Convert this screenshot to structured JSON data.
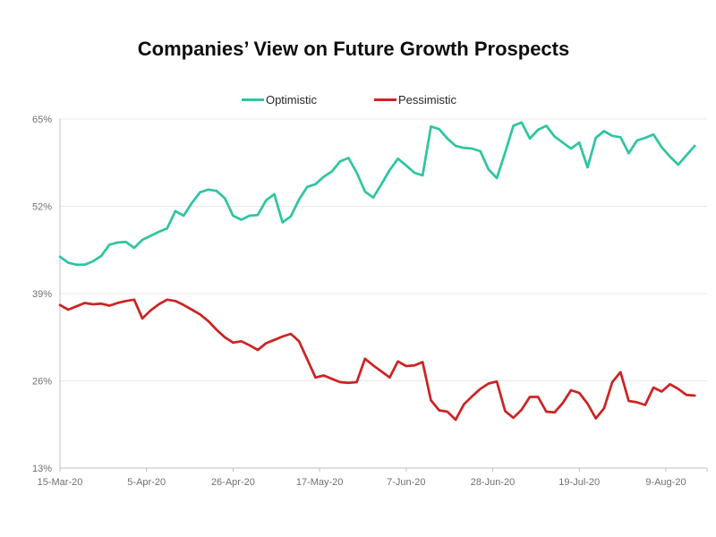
{
  "title": {
    "text": "Companies’ View on Future Growth Prospects",
    "color": "#0D0D0D"
  },
  "chart_data": {
    "type": "line",
    "title": "Companies’ View on Future Growth Prospects",
    "legend_position": "top-center",
    "grid": "horizontal",
    "background": "#FFFFFF",
    "axis_color": "#BFBFBF",
    "grid_color": "#E9E9E9",
    "tick_label_color": "#707070",
    "legend_text_color": "#262626",
    "ylim": [
      13,
      65
    ],
    "y_ticks": [
      13,
      26,
      39,
      52,
      65
    ],
    "y_tick_labels": [
      "13%",
      "26%",
      "39%",
      "52%",
      "65%"
    ],
    "x_tick_labels": [
      "15-Mar-20",
      "5-Apr-20",
      "26-Apr-20",
      "17-May-20",
      "7-Jun-20",
      "28-Jun-20",
      "19-Jul-20",
      "9-Aug-20"
    ],
    "x_tick_days": [
      0,
      21,
      42,
      63,
      84,
      105,
      126,
      147
    ],
    "xlim_days": [
      0,
      157
    ],
    "x_dates": [
      "2020-03-15",
      "2020-03-17",
      "2020-03-19",
      "2020-03-21",
      "2020-03-23",
      "2020-03-25",
      "2020-03-27",
      "2020-03-29",
      "2020-03-31",
      "2020-04-02",
      "2020-04-04",
      "2020-04-06",
      "2020-04-08",
      "2020-04-10",
      "2020-04-12",
      "2020-04-14",
      "2020-04-16",
      "2020-04-18",
      "2020-04-20",
      "2020-04-22",
      "2020-04-24",
      "2020-04-26",
      "2020-04-28",
      "2020-04-30",
      "2020-05-02",
      "2020-05-04",
      "2020-05-06",
      "2020-05-08",
      "2020-05-10",
      "2020-05-12",
      "2020-05-14",
      "2020-05-16",
      "2020-05-18",
      "2020-05-20",
      "2020-05-22",
      "2020-05-24",
      "2020-05-26",
      "2020-05-28",
      "2020-05-30",
      "2020-06-01",
      "2020-06-03",
      "2020-06-05",
      "2020-06-07",
      "2020-06-09",
      "2020-06-11",
      "2020-06-13",
      "2020-06-15",
      "2020-06-17",
      "2020-06-19",
      "2020-06-21",
      "2020-06-23",
      "2020-06-25",
      "2020-06-27",
      "2020-06-29",
      "2020-07-01",
      "2020-07-03",
      "2020-07-05",
      "2020-07-07",
      "2020-07-09",
      "2020-07-11",
      "2020-07-13",
      "2020-07-15",
      "2020-07-17",
      "2020-07-19",
      "2020-07-21",
      "2020-07-23",
      "2020-07-25",
      "2020-07-27",
      "2020-07-29",
      "2020-07-31",
      "2020-08-02",
      "2020-08-04",
      "2020-08-06",
      "2020-08-08",
      "2020-08-10",
      "2020-08-12",
      "2020-08-14",
      "2020-08-16"
    ],
    "series": [
      {
        "name": "Optimistic",
        "color": "#2FC5A2",
        "values": [
          44.5,
          43.6,
          43.3,
          43.3,
          43.8,
          44.6,
          46.3,
          46.6,
          46.7,
          45.8,
          47.0,
          47.6,
          48.2,
          48.7,
          51.3,
          50.6,
          52.5,
          54.1,
          54.5,
          54.3,
          53.2,
          50.6,
          50.0,
          50.6,
          50.7,
          52.9,
          53.8,
          49.6,
          50.5,
          53.0,
          54.9,
          55.3,
          56.4,
          57.2,
          58.7,
          59.2,
          57.0,
          54.2,
          53.3,
          55.3,
          57.4,
          59.1,
          58.1,
          57.0,
          56.6,
          63.9,
          63.5,
          62.1,
          61.0,
          60.7,
          60.6,
          60.2,
          57.5,
          56.2,
          60.0,
          64.0,
          64.5,
          62.1,
          63.4,
          64.0,
          62.4,
          61.5,
          60.6,
          61.5,
          57.8,
          62.2,
          63.2,
          62.5,
          62.3,
          59.9,
          61.8,
          62.2,
          62.7,
          60.8,
          59.4,
          58.2,
          59.6,
          61.0
        ]
      },
      {
        "name": "Pessimistic",
        "color": "#CC2424",
        "values": [
          37.3,
          36.6,
          37.1,
          37.6,
          37.4,
          37.5,
          37.2,
          37.6,
          37.9,
          38.1,
          35.3,
          36.5,
          37.4,
          38.1,
          37.9,
          37.3,
          36.6,
          35.9,
          34.9,
          33.6,
          32.5,
          31.7,
          31.9,
          31.3,
          30.6,
          31.6,
          32.1,
          32.6,
          33.0,
          31.9,
          29.2,
          26.5,
          26.8,
          26.3,
          25.8,
          25.7,
          25.8,
          29.3,
          28.3,
          27.4,
          26.5,
          28.9,
          28.2,
          28.3,
          28.8,
          23.1,
          21.6,
          21.4,
          20.2,
          22.5,
          23.7,
          24.8,
          25.6,
          25.9,
          21.5,
          20.5,
          21.7,
          23.6,
          23.6,
          21.4,
          21.3,
          22.7,
          24.6,
          24.2,
          22.6,
          20.4,
          21.9,
          25.8,
          27.3,
          23.0,
          22.8,
          22.4,
          25.0,
          24.4,
          25.5,
          24.8,
          23.9,
          23.8
        ]
      }
    ]
  }
}
